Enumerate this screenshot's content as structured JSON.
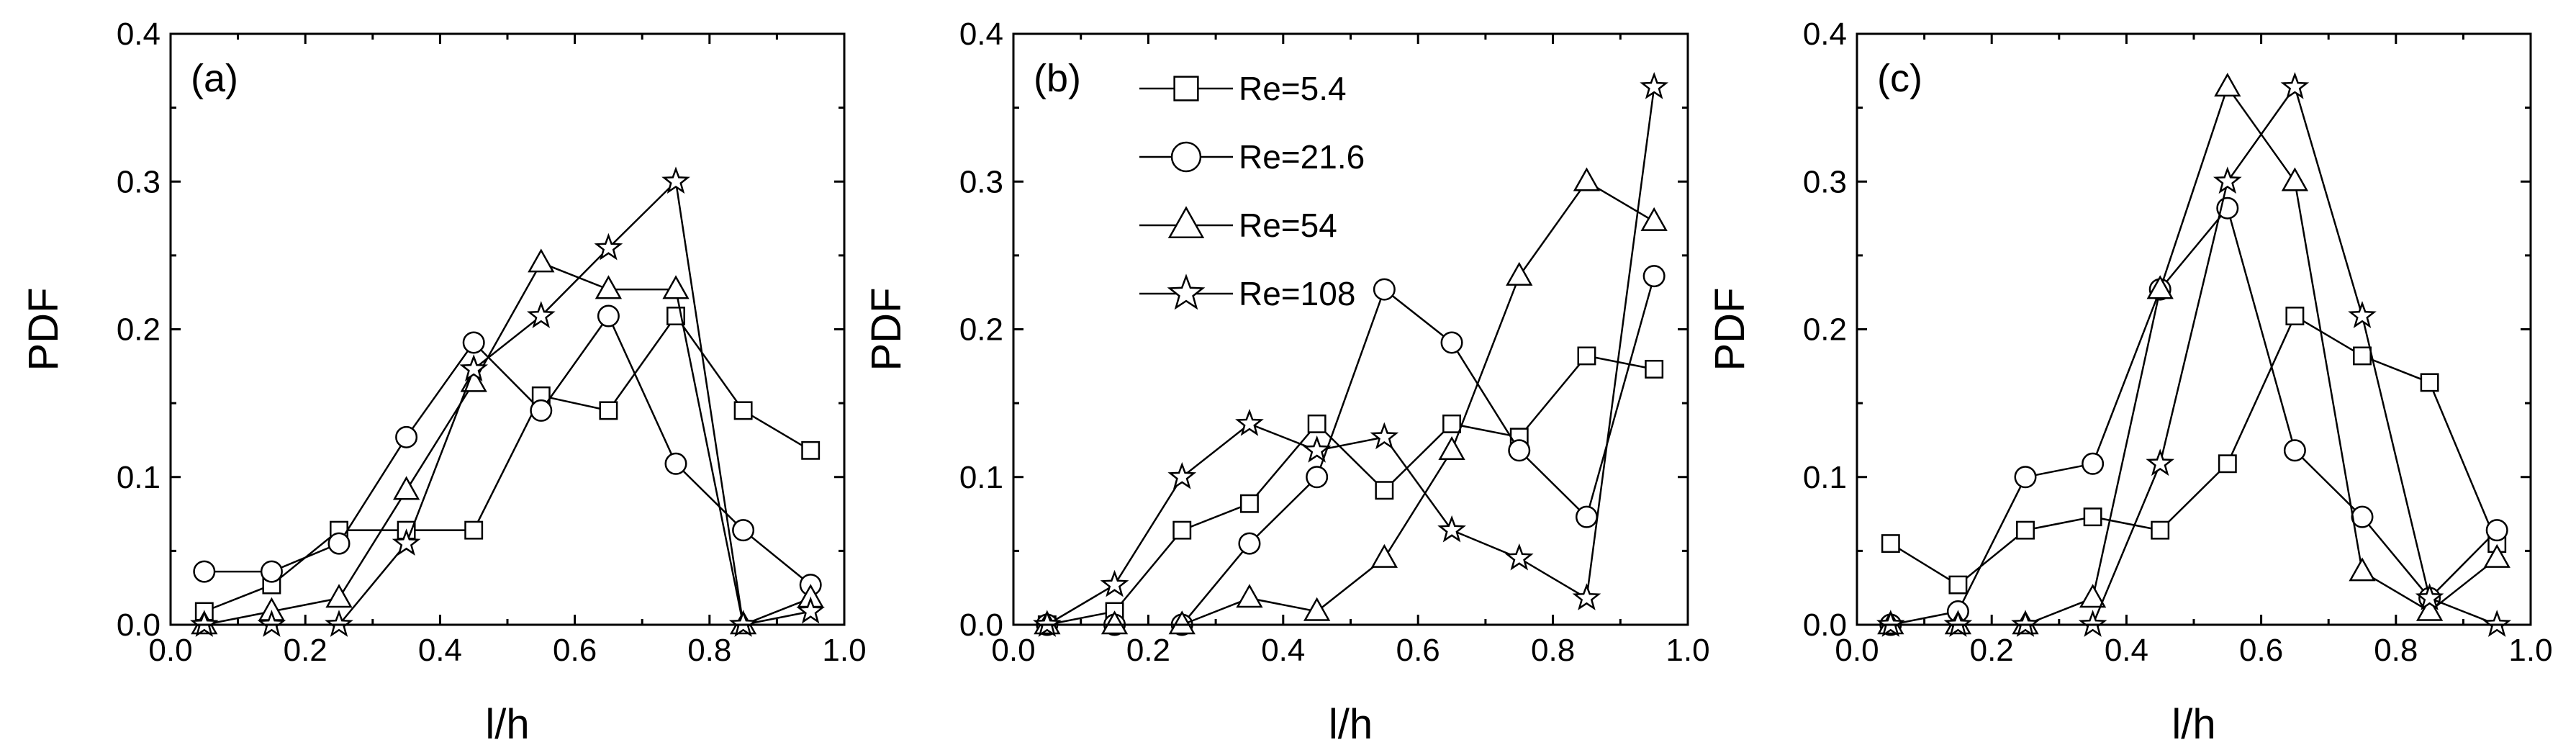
{
  "chart_data": [
    {
      "type": "line",
      "panel_label": "(a)",
      "xlabel": "l/h",
      "ylabel": "PDF",
      "xlim": [
        0.0,
        1.0
      ],
      "ylim": [
        0.0,
        0.4
      ],
      "xticks": [
        "0.0",
        "0.2",
        "0.4",
        "0.6",
        "0.8",
        "1.0"
      ],
      "yticks": [
        "0.0",
        "0.1",
        "0.2",
        "0.3",
        "0.4"
      ],
      "x": [
        0.05,
        0.15,
        0.25,
        0.35,
        0.45,
        0.55,
        0.65,
        0.75,
        0.85,
        0.95
      ],
      "series": [
        {
          "name": "Re=5.4",
          "marker": "square",
          "values": [
            0.009,
            0.027,
            0.064,
            0.064,
            0.064,
            0.155,
            0.145,
            0.209,
            0.145,
            0.118
          ]
        },
        {
          "name": "Re=21.6",
          "marker": "circle",
          "values": [
            0.036,
            0.036,
            0.055,
            0.127,
            0.191,
            0.145,
            0.209,
            0.109,
            0.064,
            0.027
          ]
        },
        {
          "name": "Re=54",
          "marker": "triangle",
          "values": [
            0.0,
            0.009,
            0.018,
            0.091,
            0.164,
            0.245,
            0.227,
            0.227,
            0.0,
            0.018
          ]
        },
        {
          "name": "Re=108",
          "marker": "star",
          "values": [
            0.0,
            0.0,
            0.0,
            0.055,
            0.173,
            0.209,
            0.255,
            0.3,
            0.0,
            0.009
          ]
        }
      ]
    },
    {
      "type": "line",
      "panel_label": "(b)",
      "xlabel": "l/h",
      "ylabel": "PDF",
      "xlim": [
        0.0,
        1.0
      ],
      "ylim": [
        0.0,
        0.4
      ],
      "xticks": [
        "0.0",
        "0.2",
        "0.4",
        "0.6",
        "0.8",
        "1.0"
      ],
      "yticks": [
        "0.0",
        "0.1",
        "0.2",
        "0.3",
        "0.4"
      ],
      "legend_position": "top-left",
      "x": [
        0.05,
        0.15,
        0.25,
        0.35,
        0.45,
        0.55,
        0.65,
        0.75,
        0.85,
        0.95
      ],
      "series": [
        {
          "name": "Re=5.4",
          "marker": "square",
          "values": [
            0.0,
            0.009,
            0.064,
            0.082,
            0.136,
            0.091,
            0.136,
            0.127,
            0.182,
            0.173
          ]
        },
        {
          "name": "Re=21.6",
          "marker": "circle",
          "values": [
            0.0,
            0.0,
            0.0,
            0.055,
            0.1,
            0.227,
            0.191,
            0.118,
            0.073,
            0.236
          ]
        },
        {
          "name": "Re=54",
          "marker": "triangle",
          "values": [
            0.0,
            0.0,
            0.0,
            0.018,
            0.009,
            0.045,
            0.118,
            0.236,
            0.3,
            0.273
          ]
        },
        {
          "name": "Re=108",
          "marker": "star",
          "values": [
            0.0,
            0.027,
            0.1,
            0.136,
            0.118,
            0.127,
            0.064,
            0.045,
            0.018,
            0.364
          ]
        }
      ]
    },
    {
      "type": "line",
      "panel_label": "(c)",
      "xlabel": "l/h",
      "ylabel": "PDF",
      "xlim": [
        0.0,
        1.0
      ],
      "ylim": [
        0.0,
        0.4
      ],
      "xticks": [
        "0.0",
        "0.2",
        "0.4",
        "0.6",
        "0.8",
        "1.0"
      ],
      "yticks": [
        "0.0",
        "0.1",
        "0.2",
        "0.3",
        "0.4"
      ],
      "x": [
        0.05,
        0.15,
        0.25,
        0.35,
        0.45,
        0.55,
        0.65,
        0.75,
        0.85,
        0.95
      ],
      "series": [
        {
          "name": "Re=5.4",
          "marker": "square",
          "values": [
            0.055,
            0.027,
            0.064,
            0.073,
            0.064,
            0.109,
            0.209,
            0.182,
            0.164,
            0.055
          ]
        },
        {
          "name": "Re=21.6",
          "marker": "circle",
          "values": [
            0.0,
            0.009,
            0.1,
            0.109,
            0.227,
            0.282,
            0.118,
            0.073,
            0.018,
            0.064
          ]
        },
        {
          "name": "Re=54",
          "marker": "triangle",
          "values": [
            0.0,
            0.0,
            0.0,
            0.018,
            0.227,
            0.364,
            0.3,
            0.036,
            0.009,
            0.045
          ]
        },
        {
          "name": "Re=108",
          "marker": "star",
          "values": [
            0.0,
            0.0,
            0.0,
            0.0,
            0.109,
            0.3,
            0.364,
            0.209,
            0.018,
            0.0
          ]
        }
      ]
    }
  ]
}
